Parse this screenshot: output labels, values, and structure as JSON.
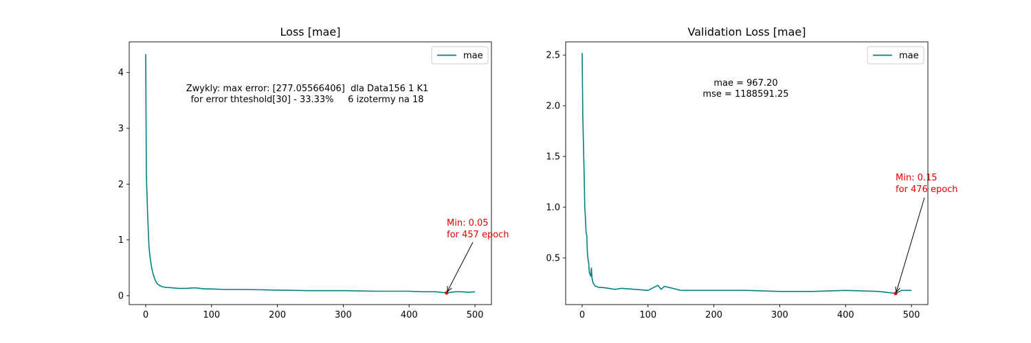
{
  "chart_data": [
    {
      "type": "line",
      "title": "Loss [mae]",
      "xlabel": "",
      "ylabel": "",
      "xlim": [
        -25,
        525
      ],
      "ylim": [
        -0.16,
        4.55
      ],
      "xticks": [
        0,
        100,
        200,
        300,
        400,
        500
      ],
      "yticks": [
        0,
        1,
        2,
        3,
        4
      ],
      "grid": false,
      "legend": "top-right",
      "color": "#008080",
      "series": [
        {
          "name": "mae",
          "x": [
            0,
            1,
            2,
            3,
            4,
            5,
            6,
            8,
            10,
            12,
            14,
            16,
            18,
            20,
            25,
            30,
            40,
            50,
            60,
            75,
            90,
            100,
            120,
            150,
            200,
            250,
            300,
            350,
            400,
            420,
            440,
            457,
            470,
            480,
            490,
            500
          ],
          "y": [
            4.33,
            2.2,
            1.8,
            1.45,
            1.15,
            0.9,
            0.75,
            0.58,
            0.45,
            0.36,
            0.29,
            0.24,
            0.21,
            0.19,
            0.16,
            0.15,
            0.14,
            0.13,
            0.13,
            0.14,
            0.12,
            0.12,
            0.11,
            0.11,
            0.1,
            0.09,
            0.09,
            0.08,
            0.08,
            0.07,
            0.07,
            0.05,
            0.07,
            0.07,
            0.06,
            0.07
          ]
        }
      ],
      "min_point": {
        "x": 457,
        "y": 0.05,
        "color": "#e00000"
      },
      "annotation_lines": [
        "Zwykly: max error: [277.05566406]  dla Data156 1 K1",
        "for error thteshold[30] - 33.33%     6 izotermy na 18"
      ],
      "min_label_lines": [
        "Min: 0.05",
        "for 457 epoch"
      ]
    },
    {
      "type": "line",
      "title": "Validation Loss [mae]",
      "xlabel": "",
      "ylabel": "",
      "xlim": [
        -25,
        525
      ],
      "ylim": [
        0.04,
        2.63
      ],
      "xticks": [
        0,
        100,
        200,
        300,
        400,
        500
      ],
      "yticks": [
        0.5,
        1.0,
        1.5,
        2.0,
        2.5
      ],
      "ytick_labels": [
        "0.5",
        "1.0",
        "1.5",
        "2.0",
        "2.5"
      ],
      "grid": false,
      "legend": "top-right",
      "color": "#008080",
      "series": [
        {
          "name": "mae",
          "x": [
            0,
            1,
            2,
            3,
            4,
            5,
            6,
            7,
            8,
            9,
            10,
            11,
            12,
            13,
            14,
            15,
            16,
            17,
            18,
            19,
            20,
            22,
            25,
            30,
            40,
            50,
            60,
            80,
            100,
            115,
            120,
            125,
            150,
            200,
            250,
            300,
            350,
            400,
            450,
            476,
            485,
            500
          ],
          "y": [
            2.52,
            1.9,
            1.6,
            1.35,
            1.0,
            0.9,
            0.75,
            0.72,
            0.55,
            0.48,
            0.45,
            0.35,
            0.34,
            0.32,
            0.4,
            0.3,
            0.27,
            0.25,
            0.24,
            0.23,
            0.22,
            0.22,
            0.21,
            0.21,
            0.2,
            0.19,
            0.2,
            0.19,
            0.18,
            0.23,
            0.19,
            0.22,
            0.18,
            0.18,
            0.18,
            0.17,
            0.17,
            0.18,
            0.17,
            0.15,
            0.18,
            0.18
          ]
        }
      ],
      "min_point": {
        "x": 476,
        "y": 0.15,
        "color": "#e00000"
      },
      "annotation_lines": [
        "mae = 967.20",
        "mse = 1188591.25"
      ],
      "min_label_lines": [
        "Min: 0.15",
        "for 476 epoch"
      ]
    }
  ]
}
